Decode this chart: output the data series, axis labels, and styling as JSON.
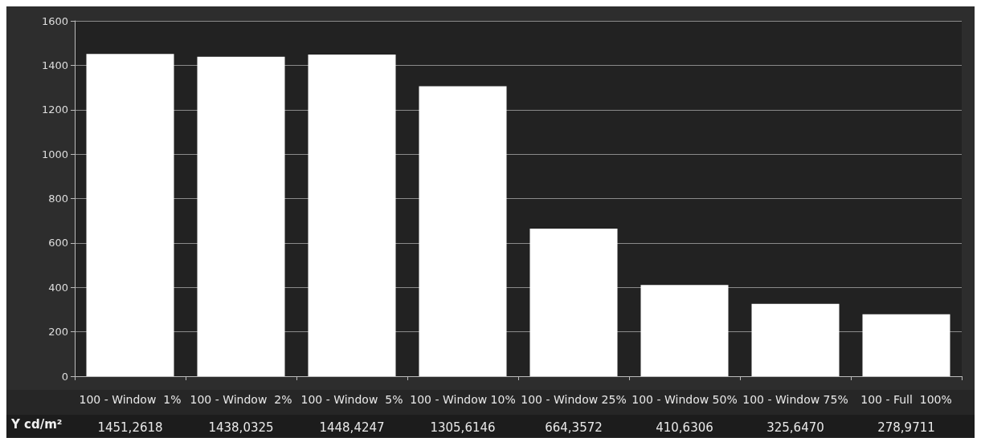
{
  "chart_data": {
    "type": "bar",
    "ylabel": "Y cd/m²",
    "categories": [
      "100 - Window  1%",
      "100 - Window  2%",
      "100 - Window  5%",
      "100 - Window 10%",
      "100 - Window 25%",
      "100 - Window 50%",
      "100 - Window 75%",
      "100 - Full  100%"
    ],
    "values": [
      1451.2618,
      1438.0325,
      1448.4247,
      1305.6146,
      664.3572,
      410.6306,
      325.647,
      278.9711
    ],
    "value_labels": [
      "1451,2618",
      "1438,0325",
      "1448,4247",
      "1305,6146",
      "664,3572",
      "410,6306",
      "325,6470",
      "278,9711"
    ],
    "color": "#ffffff",
    "ylim": [
      0,
      1600
    ],
    "yticks": [
      0,
      200,
      400,
      600,
      800,
      1000,
      1200,
      1400,
      1600
    ],
    "grid": "y"
  }
}
